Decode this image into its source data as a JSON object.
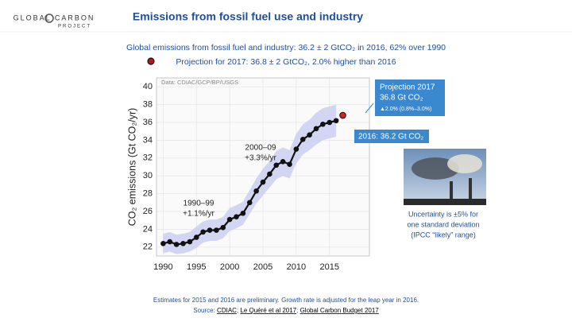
{
  "logo": {
    "line1": "GLOBAL CARBON",
    "line2": "PROJECT"
  },
  "header": {
    "title": "Emissions from fossil fuel use and industry"
  },
  "subtitle": {
    "line1": "Global emissions from fossil fuel and industry: 36.2 ± 2 GtCO₂ in 2016, 62% over 1990",
    "line2": "Projection for 2017: 36.8 ± 2 GtCO₂, 2.0% higher than 2016"
  },
  "chart_data": {
    "type": "line",
    "y_label": "CO₂ emissions (Gt CO₂/yr)",
    "x": [
      1990,
      1991,
      1992,
      1993,
      1994,
      1995,
      1996,
      1997,
      1998,
      1999,
      2000,
      2001,
      2002,
      2003,
      2004,
      2005,
      2006,
      2007,
      2008,
      2009,
      2010,
      2011,
      2012,
      2013,
      2014,
      2015,
      2016
    ],
    "series": [
      {
        "name": "Global emissions",
        "color": "#111111",
        "values": [
          22.4,
          22.6,
          22.3,
          22.4,
          22.6,
          23.1,
          23.7,
          23.9,
          23.9,
          24.2,
          25.1,
          25.4,
          25.8,
          27.0,
          28.3,
          29.3,
          30.2,
          31.2,
          31.6,
          31.3,
          33.0,
          34.1,
          34.6,
          35.3,
          35.8,
          36.0,
          36.2
        ]
      }
    ],
    "band": {
      "color": "#c9cdf0",
      "lower": [
        21.3,
        21.5,
        21.2,
        21.3,
        21.5,
        21.9,
        22.5,
        22.7,
        22.7,
        23.0,
        23.8,
        24.1,
        24.5,
        25.7,
        26.9,
        27.8,
        28.7,
        29.6,
        30.0,
        29.7,
        31.4,
        32.4,
        32.9,
        33.5,
        34.0,
        34.2,
        34.4
      ],
      "upper": [
        23.5,
        23.7,
        23.4,
        23.5,
        23.7,
        24.3,
        24.9,
        25.1,
        25.1,
        25.4,
        26.4,
        26.7,
        27.1,
        28.4,
        29.7,
        30.8,
        31.7,
        32.8,
        33.2,
        32.9,
        34.7,
        35.8,
        36.3,
        37.1,
        37.6,
        37.8,
        38.0
      ]
    },
    "projection": {
      "x": 2017,
      "value": 36.8,
      "color": "#d62020"
    },
    "xlim": [
      1989,
      2021
    ],
    "ylim": [
      21,
      41
    ],
    "xticks": [
      1990,
      1995,
      2000,
      2005,
      2010,
      2015
    ],
    "yticks": [
      22,
      24,
      26,
      28,
      30,
      32,
      34,
      36,
      38,
      40
    ],
    "annotations": [
      "Data: CDIAC/GCP/BP/USGS",
      "2000–09",
      "+3.3%/yr",
      "1990–99",
      "+1.1%/yr",
      "Projection 2017",
      "36.8 Gt CO₂",
      "▲2.0% (0.8%–3.0%)",
      "2016: 36.2 Gt CO₂"
    ]
  },
  "photo_caption": [
    "Uncertainty is ±5% for",
    "one standard deviation",
    "(IPCC “likely” range)"
  ],
  "footnote": "Estimates for 2015 and 2016 are preliminary. Growth rate is adjusted for the leap year in 2016.",
  "source": {
    "prefix": "Source: ",
    "links": [
      "CDIAC",
      "Le Quéré et al 2017",
      "Global Carbon Budget 2017"
    ]
  }
}
